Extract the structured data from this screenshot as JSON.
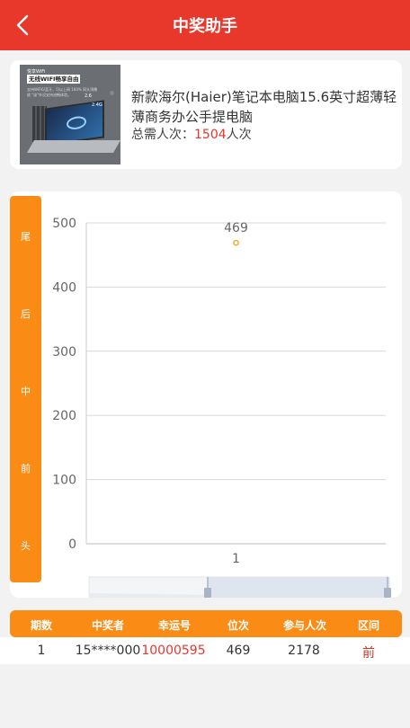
{
  "header": {
    "title": "中奖助手",
    "back_icon": "chevron-left-icon"
  },
  "product": {
    "title": "新款海尔(Haier)笔记本电脑15.6英寸超薄轻薄商务办公手提电脑",
    "count_label": "总需人次：",
    "count_value": "1504",
    "count_unit": "人次",
    "image": {
      "badge": "悦享WiFi",
      "headline": "无线WIFI畅享自由",
      "small_text": "支持WiFi6/蓝牙，可以上网 160% 同头顶播放 \"宙\"外设支持流畅体验。",
      "mini_a": "2.6",
      "mini_b": "2.4G"
    }
  },
  "side_tabs": [
    "尾",
    "后",
    "中",
    "前",
    "头"
  ],
  "chart_data": {
    "type": "scatter",
    "categories": [
      "1"
    ],
    "values": [
      469
    ],
    "data_labels": [
      "469"
    ],
    "yticks": [
      "0",
      "100",
      "200",
      "300",
      "400",
      "500"
    ],
    "ylim": [
      0,
      500
    ],
    "grid": true,
    "colors": {
      "point": "#f5a623",
      "grid": "#d8d8d8",
      "zoom_fill": "#dce3ec"
    }
  },
  "table": {
    "headers": [
      "期数",
      "中奖者",
      "幸运号",
      "位次",
      "参与人次",
      "区间"
    ],
    "rows": [
      {
        "period": "1",
        "winner": "15****000",
        "lucky": "10000595",
        "rank": "469",
        "participants": "2178",
        "region": "前"
      }
    ]
  },
  "colors": {
    "header_red": "#e8372b",
    "accent_orange": "#fa8c16"
  }
}
